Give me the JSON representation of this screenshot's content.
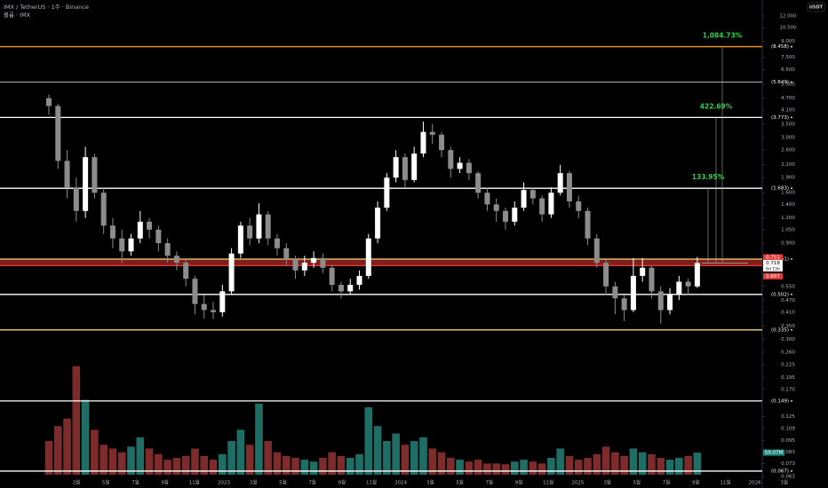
{
  "chart_data": {
    "type": "candlestick",
    "title": "IMX / TetherUS · 1주 · Binance",
    "subtitle": "볼륨 · IMX",
    "currency": "USDT",
    "log_scale": true,
    "ylim": [
      0.063,
      12
    ],
    "yticks": [
      {
        "value": 12,
        "label": "12.000"
      },
      {
        "value": 10.5,
        "label": "10.500"
      },
      {
        "value": 9,
        "label": "9.000"
      },
      {
        "value": 7.5,
        "label": "7.500"
      },
      {
        "value": 6.5,
        "label": "6.500"
      },
      {
        "value": 5.5,
        "label": "5.500"
      },
      {
        "value": 4.7,
        "label": "4.700"
      },
      {
        "value": 4.1,
        "label": "4.100"
      },
      {
        "value": 3.5,
        "label": "3.500"
      },
      {
        "value": 3,
        "label": "3.000"
      },
      {
        "value": 2.6,
        "label": "2.600"
      },
      {
        "value": 2.2,
        "label": "2.200"
      },
      {
        "value": 1.9,
        "label": "1.900"
      },
      {
        "value": 1.6,
        "label": "1.600"
      },
      {
        "value": 1.4,
        "label": "1.400"
      },
      {
        "value": 1.2,
        "label": "1.200"
      },
      {
        "value": 1.05,
        "label": "1.050"
      },
      {
        "value": 0.9,
        "label": "0.900"
      },
      {
        "value": 0.55,
        "label": "0.550"
      },
      {
        "value": 0.47,
        "label": "0.470"
      },
      {
        "value": 0.41,
        "label": "0.410"
      },
      {
        "value": 0.35,
        "label": "0.350"
      },
      {
        "value": 0.3,
        "label": "0.300"
      },
      {
        "value": 0.26,
        "label": "0.260"
      },
      {
        "value": 0.225,
        "label": "0.225"
      },
      {
        "value": 0.195,
        "label": "0.195"
      },
      {
        "value": 0.17,
        "label": "0.170"
      },
      {
        "value": 0.125,
        "label": "0.125"
      },
      {
        "value": 0.109,
        "label": "0.109"
      },
      {
        "value": 0.095,
        "label": "0.095"
      },
      {
        "value": 0.083,
        "label": "0.083"
      },
      {
        "value": 0.073,
        "label": "0.073"
      },
      {
        "value": 0.063,
        "label": "0.063"
      }
    ],
    "categories": [
      "3월",
      "5월",
      "7월",
      "9월",
      "11월",
      "2023",
      "3월",
      "5월",
      "7월",
      "9월",
      "11월",
      "2024",
      "3월",
      "5월",
      "7월",
      "9월",
      "11월",
      "2025",
      "3월",
      "5월",
      "7월",
      "9월",
      "11월",
      "2026",
      "3월"
    ],
    "up_color": "#ffffff",
    "down_color": "#8c8c8c",
    "open": [
      4.7,
      4.3,
      2.3,
      1.7,
      1.3,
      2.4,
      1.6,
      1.1,
      0.95,
      0.82,
      0.95,
      1.15,
      1.05,
      0.9,
      0.78,
      0.72,
      0.6,
      0.45,
      0.42,
      0.41,
      0.52,
      0.8,
      1.1,
      0.95,
      1.25,
      0.95,
      0.85,
      0.75,
      0.66,
      0.72,
      0.76,
      0.68,
      0.56,
      0.52,
      0.56,
      0.62,
      0.95,
      1.35,
      1.9,
      2.4,
      1.85,
      2.5,
      3.2,
      3.1,
      2.6,
      2.1,
      2.25,
      2.0,
      1.6,
      1.4,
      1.3,
      1.15,
      1.35,
      1.65,
      1.5,
      1.25,
      1.6,
      2.0,
      1.45,
      1.3,
      0.95,
      0.72,
      0.55,
      0.48,
      0.42,
      0.62,
      0.68,
      0.52,
      0.42,
      0.5,
      0.58,
      0.55
    ],
    "high": [
      4.9,
      4.4,
      2.6,
      1.9,
      2.7,
      2.5,
      1.7,
      1.2,
      1.05,
      1.0,
      1.3,
      1.2,
      1.1,
      0.95,
      0.82,
      0.75,
      0.62,
      0.5,
      0.46,
      0.56,
      0.85,
      1.15,
      1.2,
      1.42,
      1.3,
      1.0,
      0.9,
      0.78,
      0.78,
      0.82,
      0.8,
      0.7,
      0.58,
      0.6,
      0.66,
      1.0,
      1.45,
      2.0,
      2.6,
      2.5,
      2.7,
      3.6,
      3.5,
      3.2,
      2.7,
      2.4,
      2.35,
      2.05,
      1.7,
      1.5,
      1.35,
      1.45,
      1.8,
      1.7,
      1.55,
      1.7,
      2.2,
      2.05,
      1.55,
      1.35,
      1.0,
      0.75,
      0.58,
      0.5,
      0.76,
      0.76,
      0.7,
      0.55,
      0.54,
      0.62,
      0.6,
      0.77
    ],
    "low": [
      3.9,
      2.1,
      1.5,
      1.15,
      1.2,
      1.5,
      1.0,
      0.85,
      0.72,
      0.78,
      0.9,
      0.95,
      0.82,
      0.72,
      0.66,
      0.55,
      0.4,
      0.38,
      0.38,
      0.39,
      0.5,
      0.76,
      0.88,
      0.9,
      0.88,
      0.78,
      0.7,
      0.6,
      0.62,
      0.68,
      0.64,
      0.52,
      0.48,
      0.5,
      0.53,
      0.6,
      0.9,
      1.3,
      1.8,
      1.7,
      1.8,
      2.4,
      2.8,
      2.4,
      1.9,
      2.0,
      1.85,
      1.5,
      1.3,
      1.15,
      1.05,
      1.1,
      1.3,
      1.4,
      1.15,
      1.2,
      1.55,
      1.35,
      1.2,
      0.88,
      0.68,
      0.5,
      0.4,
      0.37,
      0.41,
      0.58,
      0.48,
      0.36,
      0.4,
      0.47,
      0.5,
      0.54
    ],
    "close": [
      4.3,
      2.3,
      1.7,
      1.3,
      2.4,
      1.6,
      1.1,
      0.95,
      0.82,
      0.95,
      1.15,
      1.05,
      0.9,
      0.78,
      0.72,
      0.6,
      0.45,
      0.42,
      0.41,
      0.52,
      0.8,
      1.1,
      0.95,
      1.25,
      0.95,
      0.85,
      0.75,
      0.66,
      0.72,
      0.76,
      0.68,
      0.56,
      0.52,
      0.56,
      0.62,
      0.95,
      1.35,
      1.9,
      2.4,
      1.85,
      2.5,
      3.2,
      3.1,
      2.6,
      2.1,
      2.25,
      2.0,
      1.6,
      1.4,
      1.3,
      1.15,
      1.35,
      1.65,
      1.5,
      1.25,
      1.6,
      2.0,
      1.45,
      1.3,
      0.95,
      0.72,
      0.55,
      0.48,
      0.42,
      0.62,
      0.68,
      0.52,
      0.42,
      0.5,
      0.58,
      0.55,
      0.718
    ],
    "volume": [
      90,
      130,
      150,
      290,
      200,
      120,
      80,
      70,
      60,
      75,
      100,
      70,
      55,
      40,
      45,
      50,
      70,
      50,
      40,
      55,
      90,
      120,
      80,
      190,
      90,
      60,
      50,
      45,
      40,
      35,
      45,
      60,
      50,
      45,
      55,
      180,
      130,
      90,
      110,
      80,
      90,
      100,
      70,
      60,
      45,
      40,
      35,
      40,
      30,
      30,
      28,
      35,
      40,
      35,
      30,
      45,
      70,
      50,
      40,
      45,
      55,
      75,
      60,
      50,
      70,
      60,
      55,
      45,
      40,
      45,
      50,
      59.07
    ],
    "volume_ylim": [
      0,
      320
    ],
    "volume_up_color": "#1f6e66",
    "volume_down_color": "#7d2b2b",
    "volume_label": "59.07M",
    "levels": [
      {
        "value": 8.458,
        "label": "(8.458)",
        "color": "#ff9800"
      },
      {
        "value": 5.649,
        "label": "(5.649)",
        "color": "#9e9e9e"
      },
      {
        "value": 3.773,
        "label": "(3.773)",
        "color": "#ffffff"
      },
      {
        "value": 1.683,
        "label": "(1.683)",
        "color": "#ffffff"
      },
      {
        "value": 0.751,
        "label": "(0.751)",
        "color": "#f5d76e"
      },
      {
        "value": 0.697,
        "color": "#e53935"
      },
      {
        "value": 0.502,
        "label": "(0.502)",
        "color": "#ffffff"
      },
      {
        "value": 0.335,
        "label": "(0.335)",
        "color": "#f5d76e"
      },
      {
        "value": 0.149,
        "label": "(0.149)",
        "color": "#ffffff"
      },
      {
        "value": 0.067,
        "label": "(0.067)",
        "color": "#ffffff"
      }
    ],
    "price_tags": [
      {
        "value": 0.751,
        "label": "0.751",
        "color": "#e53935"
      },
      {
        "value": 0.718,
        "label": "0.718",
        "color": "#ffffff",
        "note": "6d 15h"
      },
      {
        "value": 0.697,
        "label": "0.697",
        "color": "#e53935"
      }
    ],
    "annotations": [
      "133.95%",
      "422.69%",
      "1,084.73%"
    ]
  }
}
